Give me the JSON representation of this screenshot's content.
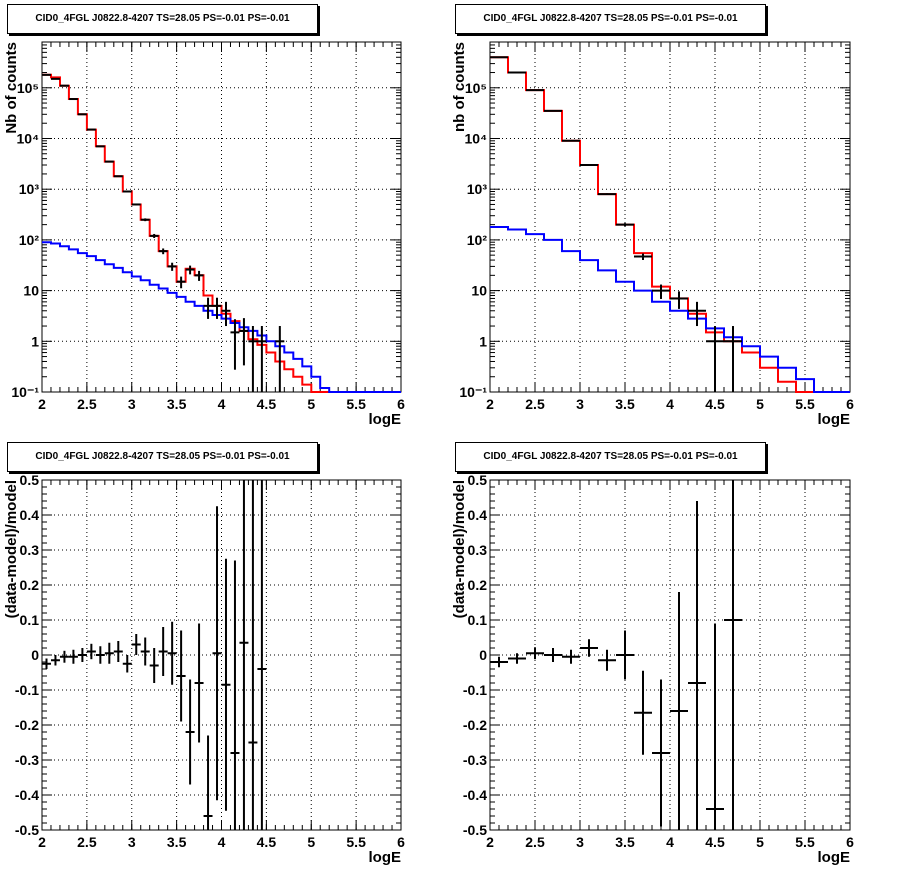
{
  "chart_data": [
    {
      "type": "step",
      "title": "CID0_4FGL J0822.8-4207 TS=28.05 PS=-0.01 PS=-0.01",
      "xlabel": "logE",
      "ylabel": "Nb of counts",
      "xlim": [
        2,
        6
      ],
      "ylim": [
        0.1,
        800000
      ],
      "yscale": "log",
      "grid": true,
      "x_ticks": [
        "2",
        "2.5",
        "3",
        "3.5",
        "4",
        "4.5",
        "5",
        "5.5",
        "6"
      ],
      "y_ticks": [
        {
          "value": 0.1,
          "label": "10⁻¹"
        },
        {
          "value": 1,
          "label": "1"
        },
        {
          "value": 10,
          "label": "10"
        },
        {
          "value": 100,
          "label": "10²"
        },
        {
          "value": 1000,
          "label": "10³"
        },
        {
          "value": 10000,
          "label": "10⁴"
        },
        {
          "value": 100000,
          "label": "10⁵"
        }
      ],
      "bin_edges": [
        2.0,
        2.1,
        2.2,
        2.3,
        2.4,
        2.5,
        2.6,
        2.7,
        2.8,
        2.9,
        3.0,
        3.1,
        3.2,
        3.3,
        3.4,
        3.5,
        3.6,
        3.7,
        3.8,
        3.9,
        4.0,
        4.1,
        4.2,
        4.3,
        4.4,
        4.5,
        4.6,
        4.7,
        4.8,
        4.9,
        5.0,
        5.1,
        5.2,
        5.3,
        5.4,
        5.5,
        5.6,
        5.7,
        5.8,
        5.9,
        6.0
      ],
      "series": [
        {
          "role": "model",
          "color": "#ff0000",
          "values": [
            180000,
            160000,
            110000,
            60000,
            30000,
            15000,
            7000,
            3500,
            1800,
            900,
            500,
            250,
            120,
            60,
            30,
            15,
            27,
            20,
            8,
            5,
            3.5,
            2.5,
            1.6,
            1.1,
            0.85,
            0.6,
            0.4,
            0.28,
            0.2,
            0.14,
            0.1,
            0.1,
            0.1,
            0.1,
            0.1,
            0.1,
            0.1,
            0.1,
            0.1,
            0.1
          ]
        },
        {
          "role": "background",
          "color": "#0000ff",
          "values": [
            90,
            85,
            75,
            65,
            55,
            48,
            40,
            33,
            28,
            23,
            19,
            16,
            13,
            11,
            9,
            7.5,
            6,
            5,
            4,
            3.3,
            2.8,
            2.3,
            1.9,
            1.6,
            1.3,
            1,
            0.8,
            0.6,
            0.45,
            0.32,
            0.2,
            0.12,
            0.1,
            0.1,
            0.1,
            0.1,
            0.1,
            0.1,
            0.1,
            0.1
          ]
        },
        {
          "role": "data",
          "color": "#000000",
          "points": [
            {
              "x": 2.05,
              "y": 180000
            },
            {
              "x": 2.15,
              "y": 150000
            },
            {
              "x": 2.25,
              "y": 110000
            },
            {
              "x": 2.35,
              "y": 60000
            },
            {
              "x": 2.45,
              "y": 30000
            },
            {
              "x": 2.55,
              "y": 15000
            },
            {
              "x": 2.65,
              "y": 7000
            },
            {
              "x": 2.75,
              "y": 3500
            },
            {
              "x": 2.85,
              "y": 1800
            },
            {
              "x": 2.95,
              "y": 900
            },
            {
              "x": 3.05,
              "y": 500
            },
            {
              "x": 3.15,
              "y": 250
            },
            {
              "x": 3.25,
              "y": 120
            },
            {
              "x": 3.35,
              "y": 60
            },
            {
              "x": 3.45,
              "y": 30
            },
            {
              "x": 3.55,
              "y": 15
            },
            {
              "x": 3.65,
              "y": 26
            },
            {
              "x": 3.75,
              "y": 20
            },
            {
              "x": 3.85,
              "y": 5
            },
            {
              "x": 3.95,
              "y": 5
            },
            {
              "x": 4.05,
              "y": 4
            },
            {
              "x": 4.15,
              "y": 1.5
            },
            {
              "x": 4.25,
              "y": 1.6
            },
            {
              "x": 4.35,
              "y": 1
            },
            {
              "x": 4.45,
              "y": 1
            },
            {
              "x": 4.65,
              "y": 1
            }
          ]
        }
      ]
    },
    {
      "type": "step",
      "title": "CID0_4FGL J0822.8-4207 TS=28.05 PS=-0.01 PS=-0.01",
      "xlabel": "logE",
      "ylabel": "nb of counts",
      "xlim": [
        2,
        6
      ],
      "ylim": [
        0.1,
        800000
      ],
      "yscale": "log",
      "grid": true,
      "x_ticks": [
        "2",
        "2.5",
        "3",
        "3.5",
        "4",
        "4.5",
        "5",
        "5.5",
        "6"
      ],
      "y_ticks": [
        {
          "value": 0.1,
          "label": "10⁻¹"
        },
        {
          "value": 1,
          "label": "1"
        },
        {
          "value": 10,
          "label": "10"
        },
        {
          "value": 100,
          "label": "10²"
        },
        {
          "value": 1000,
          "label": "10³"
        },
        {
          "value": 10000,
          "label": "10⁴"
        },
        {
          "value": 100000,
          "label": "10⁵"
        }
      ],
      "bin_edges": [
        2.0,
        2.2,
        2.4,
        2.6,
        2.8,
        3.0,
        3.2,
        3.4,
        3.6,
        3.8,
        4.0,
        4.2,
        4.4,
        4.6,
        4.8,
        5.0,
        5.2,
        5.4,
        5.6,
        5.8,
        6.0
      ],
      "series": [
        {
          "role": "model",
          "color": "#ff0000",
          "values": [
            400000,
            200000,
            90000,
            35000,
            9000,
            3000,
            800,
            200,
            55,
            12,
            7,
            3.5,
            1.5,
            1,
            0.6,
            0.3,
            0.16,
            0.1,
            0.1,
            0.1
          ]
        },
        {
          "role": "background",
          "color": "#0000ff",
          "values": [
            180,
            160,
            130,
            100,
            60,
            40,
            25,
            15,
            10,
            6,
            4,
            2.8,
            1.8,
            1.2,
            0.8,
            0.5,
            0.3,
            0.18,
            0.1,
            0.1
          ]
        },
        {
          "role": "data",
          "color": "#000000",
          "points": [
            {
              "x": 2.1,
              "y": 400000
            },
            {
              "x": 2.3,
              "y": 200000
            },
            {
              "x": 2.5,
              "y": 90000
            },
            {
              "x": 2.7,
              "y": 35000
            },
            {
              "x": 2.9,
              "y": 9000
            },
            {
              "x": 3.1,
              "y": 3000
            },
            {
              "x": 3.3,
              "y": 800
            },
            {
              "x": 3.5,
              "y": 200
            },
            {
              "x": 3.7,
              "y": 47
            },
            {
              "x": 3.9,
              "y": 10
            },
            {
              "x": 4.1,
              "y": 7
            },
            {
              "x": 4.3,
              "y": 4
            },
            {
              "x": 4.5,
              "y": 1
            },
            {
              "x": 4.7,
              "y": 1
            }
          ]
        }
      ]
    },
    {
      "type": "scatter",
      "title": "CID0_4FGL J0822.8-4207 TS=28.05 PS=-0.01 PS=-0.01",
      "xlabel": "logE",
      "ylabel": "(data-model)/model",
      "xlim": [
        2,
        6
      ],
      "ylim": [
        -0.5,
        0.5
      ],
      "grid": true,
      "x_ticks": [
        "2",
        "2.5",
        "3",
        "3.5",
        "4",
        "4.5",
        "5",
        "5.5",
        "6"
      ],
      "y_ticks": [
        "-0.5",
        "-0.4",
        "-0.3",
        "-0.2",
        "-0.1",
        "0",
        "0.1",
        "0.2",
        "0.3",
        "0.4",
        "0.5"
      ],
      "bin_width": 0.1,
      "points": [
        {
          "x": 2.05,
          "y": -0.025,
          "err": 0.015
        },
        {
          "x": 2.15,
          "y": -0.015,
          "err": 0.015
        },
        {
          "x": 2.25,
          "y": -0.005,
          "err": 0.017
        },
        {
          "x": 2.35,
          "y": -0.005,
          "err": 0.02
        },
        {
          "x": 2.45,
          "y": 0.0,
          "err": 0.02
        },
        {
          "x": 2.55,
          "y": 0.01,
          "err": 0.022
        },
        {
          "x": 2.65,
          "y": 0.0,
          "err": 0.025
        },
        {
          "x": 2.75,
          "y": 0.005,
          "err": 0.03
        },
        {
          "x": 2.85,
          "y": 0.01,
          "err": 0.03
        },
        {
          "x": 2.95,
          "y": -0.025,
          "err": 0.025
        },
        {
          "x": 3.05,
          "y": 0.03,
          "err": 0.03
        },
        {
          "x": 3.15,
          "y": 0.01,
          "err": 0.04
        },
        {
          "x": 3.25,
          "y": -0.03,
          "err": 0.05
        },
        {
          "x": 3.35,
          "y": 0.01,
          "err": 0.07
        },
        {
          "x": 3.45,
          "y": 0.005,
          "err": 0.09
        },
        {
          "x": 3.55,
          "y": -0.06,
          "err": 0.13
        },
        {
          "x": 3.65,
          "y": -0.22,
          "err": 0.15
        },
        {
          "x": 3.75,
          "y": -0.08,
          "err": 0.17
        },
        {
          "x": 3.85,
          "y": -0.46,
          "err": 0.23
        },
        {
          "x": 3.95,
          "y": 0.005,
          "err": 0.42
        },
        {
          "x": 4.05,
          "y": -0.085,
          "err": 0.36
        },
        {
          "x": 4.15,
          "y": -0.28,
          "err": 0.55
        },
        {
          "x": 4.25,
          "y": 0.035,
          "err": 0.6
        },
        {
          "x": 4.35,
          "y": -0.25,
          "err": 0.9
        },
        {
          "x": 4.45,
          "y": -0.04,
          "err": 0.9
        }
      ]
    },
    {
      "type": "scatter",
      "title": "CID0_4FGL J0822.8-4207 TS=28.05 PS=-0.01 PS=-0.01",
      "xlabel": "logE",
      "ylabel": "(data-model)/model",
      "xlim": [
        2,
        6
      ],
      "ylim": [
        -0.5,
        0.5
      ],
      "grid": true,
      "x_ticks": [
        "2",
        "2.5",
        "3",
        "3.5",
        "4",
        "4.5",
        "5",
        "5.5",
        "6"
      ],
      "y_ticks": [
        "-0.5",
        "-0.4",
        "-0.3",
        "-0.2",
        "-0.1",
        "0",
        "0.1",
        "0.2",
        "0.3",
        "0.4",
        "0.5"
      ],
      "bin_width": 0.2,
      "points": [
        {
          "x": 2.1,
          "y": -0.02,
          "err": 0.015
        },
        {
          "x": 2.3,
          "y": -0.01,
          "err": 0.015
        },
        {
          "x": 2.5,
          "y": 0.005,
          "err": 0.017
        },
        {
          "x": 2.7,
          "y": 0.0,
          "err": 0.02
        },
        {
          "x": 2.9,
          "y": -0.005,
          "err": 0.02
        },
        {
          "x": 3.1,
          "y": 0.02,
          "err": 0.025
        },
        {
          "x": 3.3,
          "y": -0.015,
          "err": 0.03
        },
        {
          "x": 3.5,
          "y": 0.0,
          "err": 0.07
        },
        {
          "x": 3.7,
          "y": -0.165,
          "err": 0.12
        },
        {
          "x": 3.9,
          "y": -0.28,
          "err": 0.21
        },
        {
          "x": 4.1,
          "y": -0.16,
          "err": 0.34
        },
        {
          "x": 4.3,
          "y": -0.08,
          "err": 0.52
        },
        {
          "x": 4.5,
          "y": -0.44,
          "err": 0.53
        },
        {
          "x": 4.7,
          "y": 0.1,
          "err": 1.0
        }
      ]
    }
  ]
}
